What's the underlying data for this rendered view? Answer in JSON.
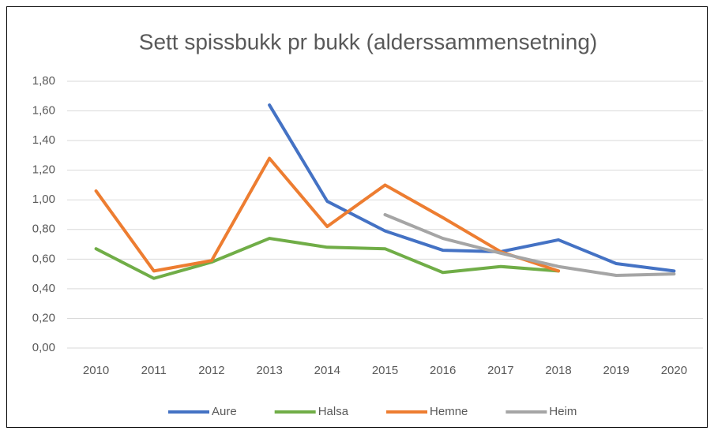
{
  "chart_data": {
    "type": "line",
    "title": "Sett spissbukk pr bukk (alderssammensetning)",
    "categories": [
      "2010",
      "2011",
      "2012",
      "2013",
      "2014",
      "2015",
      "2016",
      "2017",
      "2018",
      "2019",
      "2020"
    ],
    "series": [
      {
        "name": "Aure",
        "color": "#4472c4",
        "values": [
          null,
          null,
          null,
          1.64,
          0.99,
          0.79,
          0.66,
          0.65,
          0.73,
          0.57,
          0.52
        ]
      },
      {
        "name": "Halsa",
        "color": "#70ad47",
        "values": [
          0.67,
          0.47,
          0.58,
          0.74,
          0.68,
          0.67,
          0.51,
          0.55,
          0.52,
          null,
          null
        ]
      },
      {
        "name": "Hemne",
        "color": "#ed7d31",
        "values": [
          1.06,
          0.52,
          0.59,
          1.28,
          0.82,
          1.1,
          0.88,
          0.65,
          0.52,
          null,
          null
        ]
      },
      {
        "name": "Heim",
        "color": "#a5a5a5",
        "values": [
          null,
          null,
          null,
          null,
          null,
          0.9,
          0.74,
          0.64,
          0.55,
          0.49,
          0.5
        ]
      }
    ],
    "ylim": [
      0,
      1.8
    ],
    "yticks": [
      {
        "value": 0,
        "label": "0,00"
      },
      {
        "value": 0.2,
        "label": "0,20"
      },
      {
        "value": 0.4,
        "label": "0,40"
      },
      {
        "value": 0.6,
        "label": "0,60"
      },
      {
        "value": 0.8,
        "label": "0,80"
      },
      {
        "value": 1.0,
        "label": "1,00"
      },
      {
        "value": 1.2,
        "label": "1,20"
      },
      {
        "value": 1.4,
        "label": "1,40"
      },
      {
        "value": 1.6,
        "label": "1,60"
      },
      {
        "value": 1.8,
        "label": "1,80"
      }
    ],
    "grid": true,
    "legend": "bottom"
  }
}
